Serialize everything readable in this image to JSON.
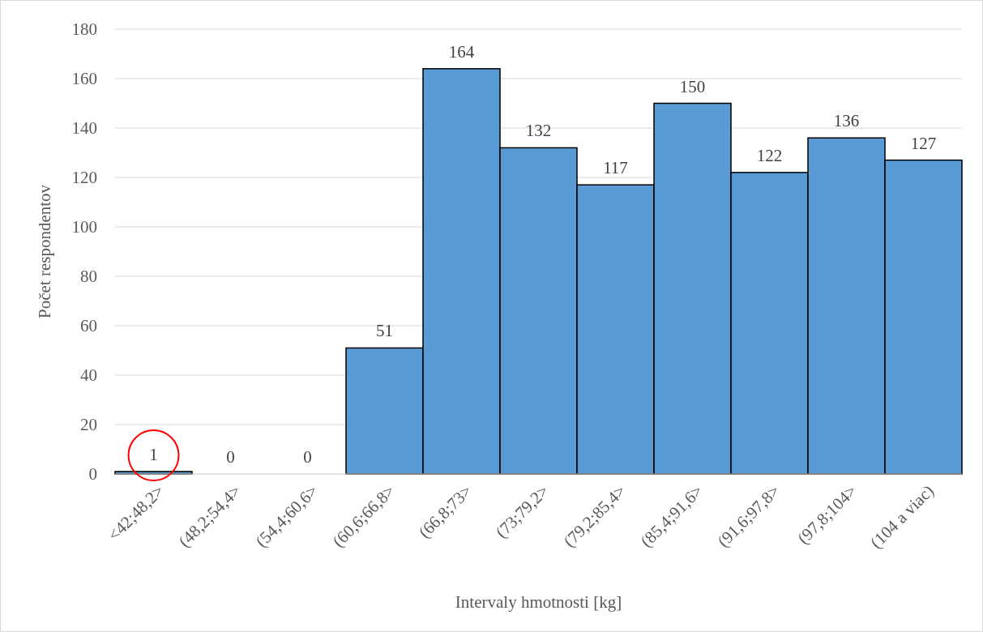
{
  "chart_data": {
    "type": "bar",
    "xlabel": "Intervaly hmotnosti [kg]",
    "ylabel": "Počet respondentov",
    "categories": [
      "<42;48,2>",
      "(48,2;54,4>",
      "(54,4;60,6>",
      "(60,6;66,8>",
      "(66,8;73>",
      "(73;79,2>",
      "(79,2;85,4>",
      "(85,4;91,6>",
      "(91,6;97,8>",
      "(97,8;104>",
      "(104 a viac)"
    ],
    "values": [
      1,
      0,
      0,
      51,
      164,
      132,
      117,
      150,
      122,
      136,
      127
    ],
    "color": "#5b9bd5",
    "ylim": [
      0,
      180
    ],
    "yticks": [
      0,
      20,
      40,
      60,
      80,
      100,
      120,
      140,
      160,
      180
    ],
    "grid": "y",
    "data_labels": true
  }
}
